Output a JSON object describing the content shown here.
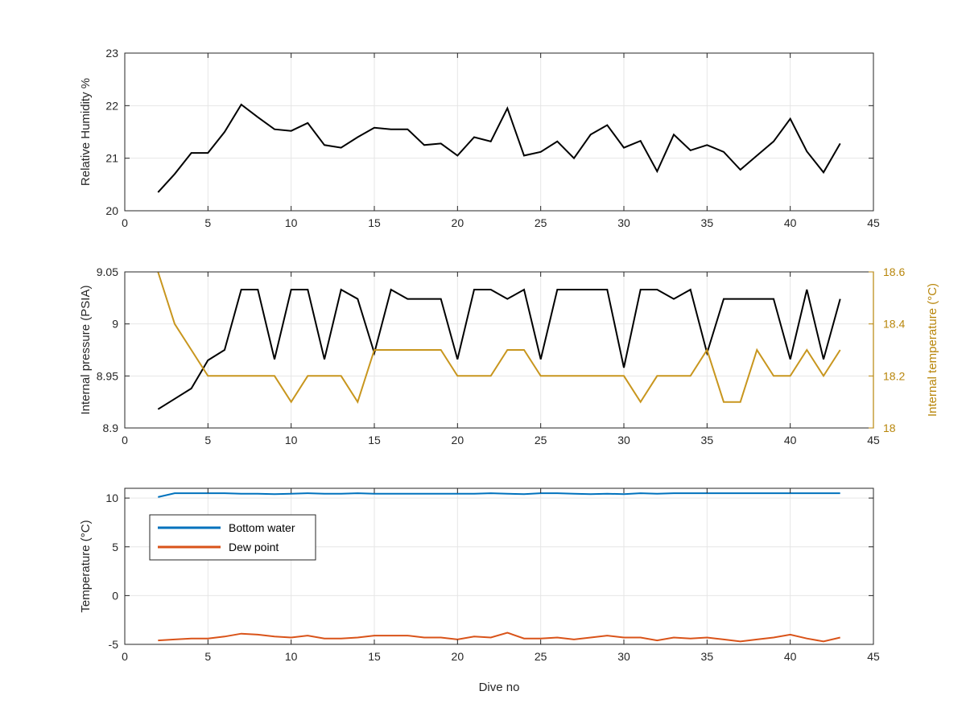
{
  "chart_data": [
    {
      "type": "line",
      "xlabel": "",
      "ylabel": "Relative Humidity %",
      "xlim": [
        0,
        45
      ],
      "ylim": [
        20,
        23
      ],
      "xticks": [
        0,
        5,
        10,
        15,
        20,
        25,
        30,
        35,
        40,
        45
      ],
      "yticks": [
        20,
        21,
        22,
        23
      ],
      "grid": true,
      "series": [
        {
          "color": "#000000",
          "x": [
            2,
            3,
            4,
            5,
            6,
            7,
            8,
            9,
            10,
            11,
            12,
            13,
            14,
            15,
            16,
            17,
            18,
            19,
            20,
            21,
            22,
            23,
            24,
            25,
            26,
            27,
            28,
            29,
            30,
            31,
            32,
            33,
            34,
            35,
            36,
            37,
            38,
            39,
            40,
            41,
            42,
            43
          ],
          "values": [
            20.35,
            20.7,
            21.1,
            21.1,
            21.5,
            22.02,
            21.78,
            21.55,
            21.52,
            21.67,
            21.25,
            21.2,
            21.4,
            21.58,
            21.55,
            21.55,
            21.25,
            21.28,
            21.05,
            21.4,
            21.32,
            21.95,
            21.05,
            21.12,
            21.32,
            21.0,
            21.45,
            21.63,
            21.2,
            21.33,
            20.75,
            21.45,
            21.15,
            21.25,
            21.12,
            20.78,
            21.05,
            21.32,
            21.75,
            21.13,
            20.73,
            21.28
          ]
        }
      ]
    },
    {
      "type": "line",
      "xlabel": "",
      "ylabel": "Internal pressure (PSIA)",
      "ylabel_right": "Internal temperature (°C)",
      "xlim": [
        0,
        45
      ],
      "ylim": [
        8.9,
        9.05
      ],
      "ylim_right": [
        18,
        18.6
      ],
      "xticks": [
        0,
        5,
        10,
        15,
        20,
        25,
        30,
        35,
        40,
        45
      ],
      "yticks": [
        8.9,
        8.95,
        9,
        9.05
      ],
      "yticks_labels": [
        "8.9",
        "8.95",
        "9",
        "9.05"
      ],
      "yticks_right": [
        18,
        18.2,
        18.4,
        18.6
      ],
      "yticks_right_labels": [
        "18",
        "18.2",
        "18.4",
        "18.6"
      ],
      "right_axis_color": "#B8860B",
      "grid": true,
      "series": [
        {
          "color": "#000000",
          "axis": "left",
          "x": [
            2,
            3,
            4,
            5,
            6,
            7,
            8,
            9,
            10,
            11,
            12,
            13,
            14,
            15,
            16,
            17,
            18,
            19,
            20,
            21,
            22,
            23,
            24,
            25,
            26,
            27,
            28,
            29,
            30,
            31,
            32,
            33,
            34,
            35,
            36,
            37,
            38,
            39,
            40,
            41,
            42,
            43
          ],
          "values": [
            8.918,
            8.928,
            8.938,
            8.965,
            8.975,
            9.033,
            9.033,
            8.966,
            9.033,
            9.033,
            8.966,
            9.033,
            9.024,
            8.972,
            9.033,
            9.024,
            9.024,
            9.024,
            8.966,
            9.033,
            9.033,
            9.024,
            9.033,
            8.966,
            9.033,
            9.033,
            9.033,
            9.033,
            8.958,
            9.033,
            9.033,
            9.024,
            9.033,
            8.972,
            9.024,
            9.024,
            9.024,
            9.024,
            8.966,
            9.033,
            8.966,
            9.024
          ]
        },
        {
          "color": "#C8961E",
          "axis": "right",
          "x": [
            2,
            3,
            4,
            5,
            6,
            7,
            8,
            9,
            10,
            11,
            12,
            13,
            14,
            15,
            16,
            17,
            18,
            19,
            20,
            21,
            22,
            23,
            24,
            25,
            26,
            27,
            28,
            29,
            30,
            31,
            32,
            33,
            34,
            35,
            36,
            37,
            38,
            39,
            40,
            41,
            42,
            43
          ],
          "values": [
            18.6,
            18.4,
            18.3,
            18.2,
            18.2,
            18.2,
            18.2,
            18.2,
            18.1,
            18.2,
            18.2,
            18.2,
            18.1,
            18.3,
            18.3,
            18.3,
            18.3,
            18.3,
            18.2,
            18.2,
            18.2,
            18.3,
            18.3,
            18.2,
            18.2,
            18.2,
            18.2,
            18.2,
            18.2,
            18.1,
            18.2,
            18.2,
            18.2,
            18.3,
            18.1,
            18.1,
            18.3,
            18.2,
            18.2,
            18.3,
            18.2,
            18.3
          ]
        }
      ]
    },
    {
      "type": "line",
      "xlabel": "Dive no",
      "ylabel": "Temperature (°C)",
      "xlim": [
        0,
        45
      ],
      "ylim": [
        -5,
        11
      ],
      "xticks": [
        0,
        5,
        10,
        15,
        20,
        25,
        30,
        35,
        40,
        45
      ],
      "yticks": [
        -5,
        0,
        5,
        10
      ],
      "grid": true,
      "legend": "top-left",
      "series": [
        {
          "name": "Bottom water",
          "color": "#0072BD",
          "x": [
            2,
            3,
            4,
            5,
            6,
            7,
            8,
            9,
            10,
            11,
            12,
            13,
            14,
            15,
            16,
            17,
            18,
            19,
            20,
            21,
            22,
            23,
            24,
            25,
            26,
            27,
            28,
            29,
            30,
            31,
            32,
            33,
            34,
            35,
            36,
            37,
            38,
            39,
            40,
            41,
            42,
            43
          ],
          "values": [
            10.1,
            10.5,
            10.5,
            10.5,
            10.5,
            10.45,
            10.45,
            10.4,
            10.45,
            10.5,
            10.45,
            10.45,
            10.5,
            10.45,
            10.45,
            10.45,
            10.45,
            10.45,
            10.45,
            10.45,
            10.5,
            10.45,
            10.4,
            10.5,
            10.5,
            10.45,
            10.4,
            10.45,
            10.4,
            10.5,
            10.45,
            10.5,
            10.5,
            10.5,
            10.5,
            10.5,
            10.5,
            10.5,
            10.5,
            10.5,
            10.5,
            10.5
          ]
        },
        {
          "name": "Dew point",
          "color": "#D95319",
          "x": [
            2,
            3,
            4,
            5,
            6,
            7,
            8,
            9,
            10,
            11,
            12,
            13,
            14,
            15,
            16,
            17,
            18,
            19,
            20,
            21,
            22,
            23,
            24,
            25,
            26,
            27,
            28,
            29,
            30,
            31,
            32,
            33,
            34,
            35,
            36,
            37,
            38,
            39,
            40,
            41,
            42,
            43
          ],
          "values": [
            -4.6,
            -4.5,
            -4.4,
            -4.4,
            -4.2,
            -3.9,
            -4.0,
            -4.2,
            -4.3,
            -4.1,
            -4.4,
            -4.4,
            -4.3,
            -4.1,
            -4.1,
            -4.1,
            -4.3,
            -4.3,
            -4.5,
            -4.2,
            -4.3,
            -3.8,
            -4.4,
            -4.4,
            -4.3,
            -4.5,
            -4.3,
            -4.1,
            -4.3,
            -4.3,
            -4.6,
            -4.3,
            -4.4,
            -4.3,
            -4.5,
            -4.7,
            -4.5,
            -4.3,
            -4.0,
            -4.4,
            -4.7,
            -4.3
          ]
        }
      ]
    }
  ]
}
